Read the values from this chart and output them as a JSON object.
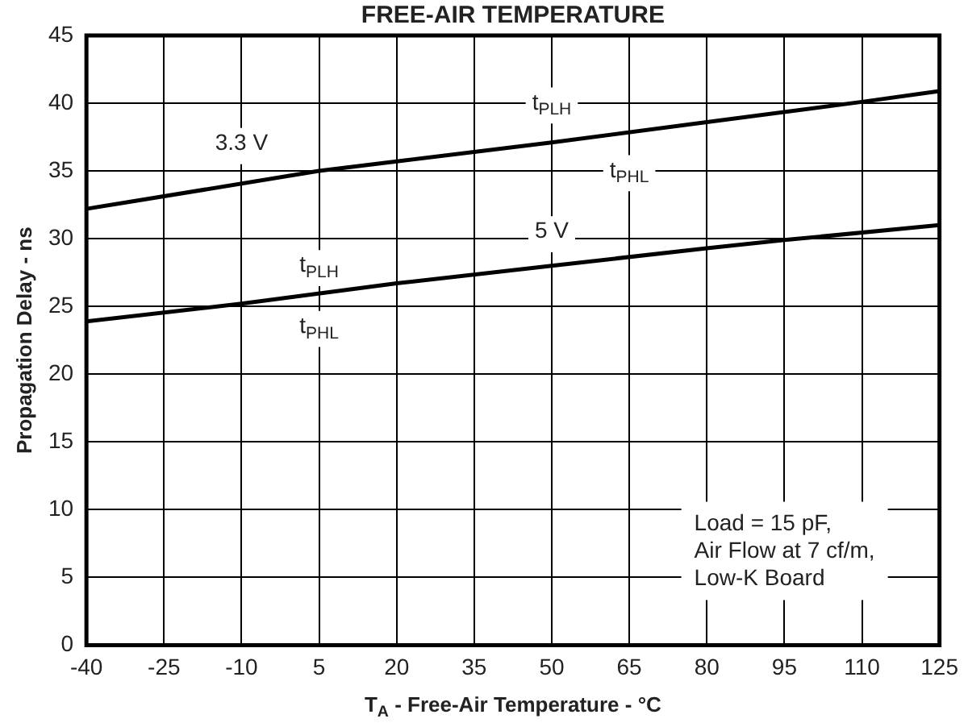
{
  "chart_data": {
    "type": "line",
    "title": "FREE-AIR TEMPERATURE",
    "xlabel": "T$_{A}$ - Free-Air Temperature - °C",
    "ylabel": "Propagation Delay - ns",
    "series": [
      {
        "color": "#000000",
        "x": [
          -40,
          5,
          20,
          50,
          80,
          110,
          125
        ],
        "values": [
          32.2,
          35,
          35.7,
          37.1,
          38.6,
          40.1,
          40.9
        ]
      },
      {
        "color": "#000000",
        "x": [
          -40,
          -10,
          20,
          50,
          80,
          95,
          125
        ],
        "values": [
          23.9,
          25.2,
          26.7,
          28,
          29.3,
          29.9,
          31
        ]
      }
    ],
    "xlim": [
      -40,
      125
    ],
    "xticks": [
      -40,
      -25,
      -10,
      5,
      20,
      35,
      50,
      65,
      80,
      95,
      110,
      125
    ],
    "ylim": [
      0,
      45
    ],
    "yticks": [
      0,
      5,
      10,
      15,
      20,
      25,
      30,
      35,
      40,
      45
    ],
    "grid": true,
    "legend": false,
    "marker": "none",
    "line_style": "solid",
    "annotations": [
      {
        "text": "3.3 V",
        "x": -10,
        "y": 37
      },
      {
        "text": "t$_{PLH}$",
        "x": 50,
        "y": 40
      },
      {
        "text": "t$_{PHL}$",
        "x": 65,
        "y": 35
      },
      {
        "text": "5 V",
        "x": 50,
        "y": 30.5
      },
      {
        "text": "t$_{PLH}$",
        "x": 5,
        "y": 28
      },
      {
        "text": "t$_{PHL}$",
        "x": 5,
        "y": 23.5
      },
      "Load = 15 pF,\nAir Flow at 7 cf/m,\nLow-K Board"
    ]
  }
}
